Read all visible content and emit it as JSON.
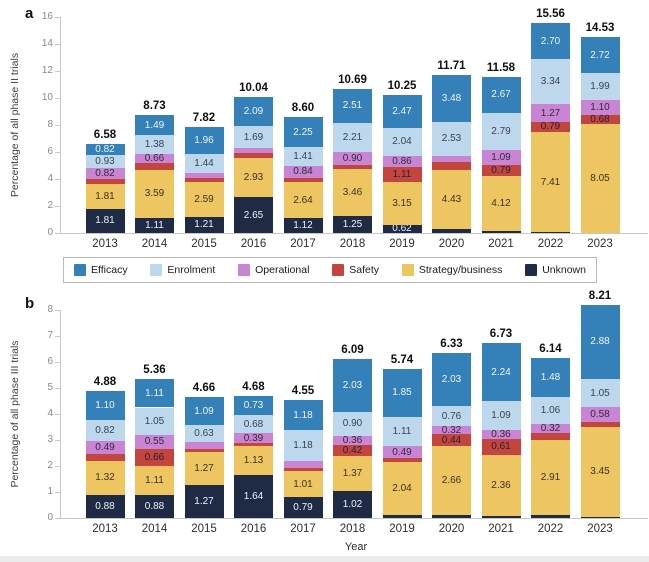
{
  "figure": {
    "background": "#ffffff"
  },
  "legend": {
    "items": [
      {
        "name": "Efficacy",
        "color": "#3480b8"
      },
      {
        "name": "Enrolment",
        "color": "#bdd8ec"
      },
      {
        "name": "Operational",
        "color": "#ca84d4"
      },
      {
        "name": "Safety",
        "color": "#c2463d"
      },
      {
        "name": "Strategy/business",
        "color": "#edc561"
      },
      {
        "name": "Unknown",
        "color": "#1f2b45"
      }
    ]
  },
  "chart_data": [
    {
      "type": "bar",
      "stacked": true,
      "panel_label": "a",
      "title": "",
      "ylabel": "Percentage of all phase II trials",
      "xlabel": "",
      "ylim": [
        0,
        16
      ],
      "ytick_step": 2,
      "grid": false,
      "legend_position": "below panel a",
      "stack_order": "bottom to top",
      "categories": [
        "2013",
        "2014",
        "2015",
        "2016",
        "2017",
        "2018",
        "2019",
        "2020",
        "2021",
        "2022",
        "2023"
      ],
      "totals": [
        "6.58",
        "8.73",
        "7.82",
        "10.04",
        "8.60",
        "10.69",
        "10.25",
        "11.71",
        "11.58",
        "15.56",
        "14.53"
      ],
      "series": [
        {
          "name": "Unknown",
          "color": "#1f2b45",
          "text_color": "#eef1f7",
          "values": [
            1.81,
            1.11,
            1.21,
            2.65,
            1.12,
            1.25,
            0.62,
            0.27,
            0.12,
            0.05,
            0.0
          ],
          "labels": [
            "1.81",
            "1.11",
            "1.21",
            "2.65",
            "1.12",
            "1.25",
            "0.62",
            "",
            "",
            "",
            ""
          ]
        },
        {
          "name": "Strategy/business",
          "color": "#edc561",
          "text_color": "#3a3426",
          "values": [
            1.81,
            3.59,
            2.59,
            2.93,
            2.64,
            3.46,
            3.15,
            4.43,
            4.12,
            7.41,
            8.05
          ],
          "labels": [
            "1.81",
            "3.59",
            "2.59",
            "2.93",
            "2.64",
            "3.46",
            "3.15",
            "4.43",
            "4.12",
            "7.41",
            "8.05"
          ]
        },
        {
          "name": "Safety",
          "color": "#c2463d",
          "text_color": "#24223b",
          "values": [
            0.39,
            0.5,
            0.31,
            0.34,
            0.34,
            0.36,
            1.11,
            0.55,
            0.79,
            0.79,
            0.68
          ],
          "labels": [
            "",
            "",
            "",
            "",
            "",
            "",
            "1.11",
            "",
            "0.79",
            "0.79",
            "0.68"
          ]
        },
        {
          "name": "Operational",
          "color": "#ca84d4",
          "text_color": "#312a3c",
          "values": [
            0.82,
            0.66,
            0.31,
            0.34,
            0.84,
            0.9,
            0.86,
            0.45,
            1.09,
            1.27,
            1.1
          ],
          "labels": [
            "0.82",
            "0.66",
            "",
            "",
            "0.84",
            "0.90",
            "0.86",
            "",
            "1.09",
            "1.27",
            "1.10"
          ]
        },
        {
          "name": "Enrolment",
          "color": "#bdd8ec",
          "text_color": "#3a4350",
          "values": [
            0.93,
            1.38,
            1.44,
            1.69,
            1.41,
            2.21,
            2.04,
            2.53,
            2.79,
            3.34,
            1.99
          ],
          "labels": [
            "0.93",
            "1.38",
            "1.44",
            "1.69",
            "1.41",
            "2.21",
            "2.04",
            "2.53",
            "2.79",
            "3.34",
            "1.99"
          ]
        },
        {
          "name": "Efficacy",
          "color": "#3480b8",
          "text_color": "#eef4fa",
          "values": [
            0.82,
            1.49,
            1.96,
            2.09,
            2.25,
            2.51,
            2.47,
            3.48,
            2.67,
            2.7,
            2.72
          ],
          "labels": [
            "0.82",
            "1.49",
            "1.96",
            "2.09",
            "2.25",
            "2.51",
            "2.47",
            "3.48",
            "2.67",
            "2.70",
            "2.72"
          ]
        }
      ]
    },
    {
      "type": "bar",
      "stacked": true,
      "panel_label": "b",
      "title": "",
      "ylabel": "Percentage of all phase III trials",
      "xlabel": "Year",
      "ylim": [
        0,
        8
      ],
      "ytick_step": 1,
      "grid": false,
      "stack_order": "bottom to top",
      "categories": [
        "2013",
        "2014",
        "2015",
        "2016",
        "2017",
        "2018",
        "2019",
        "2020",
        "2021",
        "2022",
        "2023"
      ],
      "totals": [
        "4.88",
        "5.36",
        "4.66",
        "4.68",
        "4.55",
        "6.09",
        "5.74",
        "6.33",
        "6.73",
        "6.14",
        "8.21"
      ],
      "series": [
        {
          "name": "Unknown",
          "color": "#1f2b45",
          "text_color": "#eef1f7",
          "values": [
            0.88,
            0.88,
            1.27,
            1.64,
            0.79,
            1.02,
            0.1,
            0.12,
            0.07,
            0.1,
            0.05
          ],
          "labels": [
            "0.88",
            "0.88",
            "1.27",
            "1.64",
            "0.79",
            "1.02",
            "",
            "",
            "",
            "",
            ""
          ]
        },
        {
          "name": "Strategy/business",
          "color": "#edc561",
          "text_color": "#3a3426",
          "values": [
            1.32,
            1.11,
            1.27,
            1.13,
            1.01,
            1.37,
            2.04,
            2.66,
            2.36,
            2.91,
            3.45
          ],
          "labels": [
            "1.32",
            "1.11",
            "1.27",
            "1.13",
            "1.01",
            "1.37",
            "2.04",
            "2.66",
            "2.36",
            "2.91",
            "3.45"
          ]
        },
        {
          "name": "Safety",
          "color": "#c2463d",
          "text_color": "#24223b",
          "values": [
            0.27,
            0.66,
            0.12,
            0.11,
            0.14,
            0.42,
            0.15,
            0.44,
            0.61,
            0.27,
            0.2
          ],
          "labels": [
            "",
            "0.66",
            "",
            "",
            "",
            "0.42",
            "",
            "0.44",
            "0.61",
            "",
            ""
          ]
        },
        {
          "name": "Operational",
          "color": "#ca84d4",
          "text_color": "#312a3c",
          "values": [
            0.49,
            0.55,
            0.28,
            0.39,
            0.25,
            0.36,
            0.49,
            0.32,
            0.36,
            0.32,
            0.58
          ],
          "labels": [
            "0.49",
            "0.55",
            "",
            "0.39",
            "",
            "0.36",
            "0.49",
            "0.32",
            "0.36",
            "0.32",
            "0.58"
          ]
        },
        {
          "name": "Enrolment",
          "color": "#bdd8ec",
          "text_color": "#3a4350",
          "values": [
            0.82,
            1.05,
            0.63,
            0.68,
            1.18,
            0.9,
            1.11,
            0.76,
            1.09,
            1.06,
            1.05
          ],
          "labels": [
            "0.82",
            "1.05",
            "0.63",
            "0.68",
            "1.18",
            "0.90",
            "1.11",
            "0.76",
            "1.09",
            "1.06",
            "1.05"
          ]
        },
        {
          "name": "Efficacy",
          "color": "#3480b8",
          "text_color": "#eef4fa",
          "values": [
            1.1,
            1.11,
            1.09,
            0.73,
            1.18,
            2.03,
            1.85,
            2.03,
            2.24,
            1.48,
            2.88
          ],
          "labels": [
            "1.10",
            "1.11",
            "1.09",
            "0.73",
            "1.18",
            "2.03",
            "1.85",
            "2.03",
            "2.24",
            "1.48",
            "2.88"
          ]
        }
      ]
    }
  ]
}
